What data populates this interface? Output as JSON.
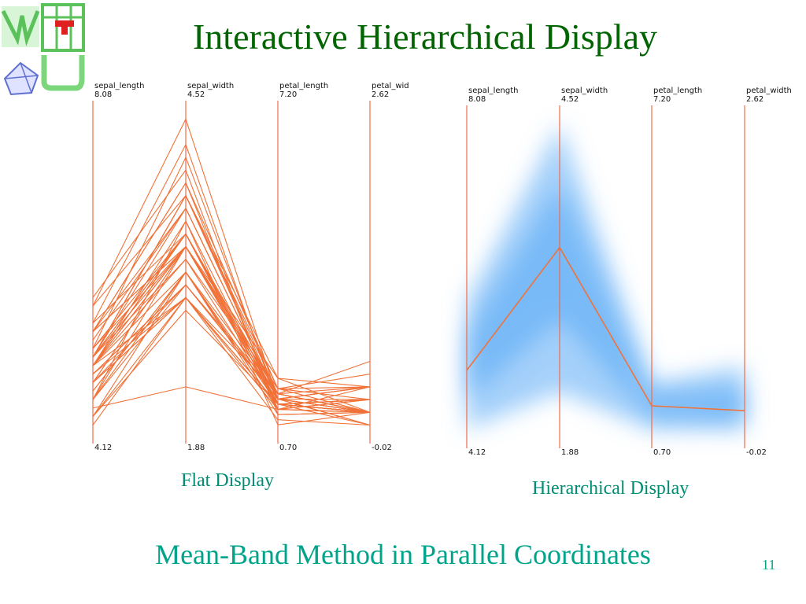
{
  "slide": {
    "title": "Interactive Hierarchical Display",
    "caption_flat": "Flat Display",
    "caption_hier": "Hierarchical Display",
    "footer": "Mean-Band Method in Parallel Coordinates",
    "page_number": "11"
  },
  "colors": {
    "title": "#006400",
    "caption": "#008c73",
    "axis_line": "#f26b4a",
    "polyline": "#f07238",
    "band": "#5aaaf5"
  },
  "chart_data": [
    {
      "type": "line",
      "name": "Flat Display",
      "axes": [
        {
          "name": "sepal_length",
          "max": "8.08",
          "min": "4.12"
        },
        {
          "name": "sepal_width",
          "max": "4.52",
          "min": "1.88"
        },
        {
          "name": "petal_length",
          "max": "7.20",
          "min": "0.70"
        },
        {
          "name": "petal_wid",
          "max": "2.62",
          "min": "-0.02"
        }
      ],
      "lines": [
        [
          5.1,
          3.5,
          1.4,
          0.2
        ],
        [
          4.9,
          3.0,
          1.4,
          0.2
        ],
        [
          4.7,
          3.2,
          1.3,
          0.2
        ],
        [
          4.6,
          3.1,
          1.5,
          0.2
        ],
        [
          5.0,
          3.6,
          1.4,
          0.2
        ],
        [
          5.4,
          3.9,
          1.7,
          0.4
        ],
        [
          4.6,
          3.4,
          1.4,
          0.3
        ],
        [
          5.0,
          3.4,
          1.5,
          0.2
        ],
        [
          4.4,
          2.9,
          1.4,
          0.2
        ],
        [
          4.9,
          3.1,
          1.5,
          0.1
        ],
        [
          5.4,
          3.7,
          1.5,
          0.2
        ],
        [
          4.8,
          3.4,
          1.6,
          0.2
        ],
        [
          4.8,
          3.0,
          1.4,
          0.1
        ],
        [
          4.3,
          3.0,
          1.1,
          0.1
        ],
        [
          5.8,
          4.0,
          1.2,
          0.2
        ],
        [
          5.7,
          4.4,
          1.5,
          0.4
        ],
        [
          5.4,
          3.9,
          1.3,
          0.4
        ],
        [
          5.1,
          3.5,
          1.4,
          0.3
        ],
        [
          5.7,
          3.8,
          1.7,
          0.3
        ],
        [
          5.1,
          3.8,
          1.5,
          0.3
        ],
        [
          5.4,
          3.4,
          1.7,
          0.2
        ],
        [
          5.1,
          3.7,
          1.5,
          0.4
        ],
        [
          4.6,
          3.6,
          1.0,
          0.2
        ],
        [
          5.1,
          3.3,
          1.7,
          0.5
        ],
        [
          4.8,
          3.4,
          1.9,
          0.2
        ],
        [
          5.0,
          3.0,
          1.6,
          0.2
        ],
        [
          5.0,
          3.4,
          1.6,
          0.4
        ],
        [
          5.2,
          3.5,
          1.5,
          0.2
        ],
        [
          5.2,
          3.4,
          1.4,
          0.2
        ],
        [
          4.7,
          3.2,
          1.6,
          0.2
        ],
        [
          4.8,
          3.1,
          1.6,
          0.2
        ],
        [
          5.4,
          3.4,
          1.5,
          0.4
        ],
        [
          5.2,
          4.1,
          1.5,
          0.1
        ],
        [
          5.5,
          4.2,
          1.4,
          0.2
        ],
        [
          4.9,
          3.1,
          1.5,
          0.2
        ],
        [
          5.0,
          3.2,
          1.2,
          0.2
        ],
        [
          5.5,
          3.5,
          1.3,
          0.2
        ],
        [
          4.4,
          3.0,
          1.3,
          0.2
        ],
        [
          5.1,
          3.4,
          1.5,
          0.2
        ],
        [
          5.0,
          3.5,
          1.3,
          0.3
        ],
        [
          4.5,
          2.3,
          1.3,
          0.3
        ],
        [
          4.4,
          3.2,
          1.3,
          0.2
        ],
        [
          5.0,
          3.5,
          1.6,
          0.6
        ],
        [
          5.1,
          3.8,
          1.9,
          0.4
        ],
        [
          4.8,
          3.0,
          1.4,
          0.3
        ],
        [
          5.1,
          3.8,
          1.6,
          0.2
        ],
        [
          4.6,
          3.2,
          1.4,
          0.2
        ],
        [
          5.3,
          3.7,
          1.5,
          0.2
        ],
        [
          5.0,
          3.3,
          1.4,
          0.2
        ]
      ]
    },
    {
      "type": "line",
      "name": "Hierarchical Display",
      "axes": [
        {
          "name": "sepal_length",
          "max": "8.08",
          "min": "4.12"
        },
        {
          "name": "sepal_width",
          "max": "4.52",
          "min": "1.88"
        },
        {
          "name": "petal_length",
          "max": "7.20",
          "min": "0.70"
        },
        {
          "name": "petal_width",
          "max": "2.62",
          "min": "-0.02"
        }
      ],
      "mean": [
        5.0,
        3.43,
        1.46,
        0.25
      ],
      "band_min": [
        4.3,
        2.3,
        1.0,
        0.1
      ],
      "band_max": [
        5.8,
        4.4,
        1.9,
        0.6
      ]
    }
  ]
}
